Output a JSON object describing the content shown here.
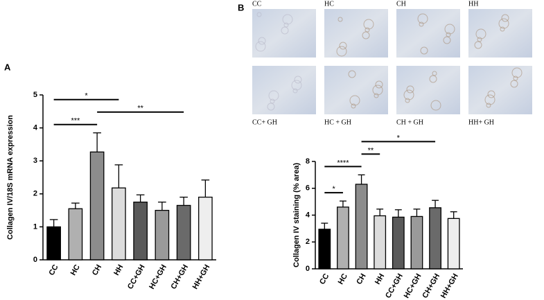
{
  "panel_labels": [
    "A",
    "B"
  ],
  "micrographs": {
    "labels": [
      "CC",
      "HC",
      "CH",
      "HH",
      "CC+ GH",
      "HC + GH",
      "CH + GH",
      "HH+ GH"
    ]
  },
  "chart_data": [
    {
      "type": "bar",
      "y_label": "Collagen IV/18S mRNA expression",
      "categories": [
        "CC",
        "HC",
        "CH",
        "HH",
        "CC+GH",
        "HC+GH",
        "CH+GH",
        "HH+GH"
      ],
      "series": [
        {
          "values": [
            1.0,
            1.55,
            3.27,
            2.18,
            1.75,
            1.5,
            1.65,
            1.9
          ],
          "errors": [
            0.22,
            0.17,
            0.58,
            0.7,
            0.22,
            0.25,
            0.25,
            0.52
          ],
          "colors": [
            "#000000",
            "#b0b0b0",
            "#8c8c8c",
            "#dcdcdc",
            "#5a5a5a",
            "#9a9a9a",
            "#6a6a6a",
            "#eeeeee"
          ]
        }
      ],
      "ylim": [
        0,
        5
      ],
      "yticks": [
        0,
        1,
        2,
        3,
        4,
        5
      ],
      "annotations": [
        {
          "text": "***",
          "from": "CC",
          "to": "CH"
        },
        {
          "text": "**",
          "from": "CH",
          "to": "CH+GH"
        },
        {
          "text": "*",
          "from": "CC",
          "to": "HH"
        }
      ]
    },
    {
      "type": "bar",
      "y_label": "Collagen IV staining (% area)",
      "categories": [
        "CC",
        "HC",
        "CH",
        "HH",
        "CC+GH",
        "HC+GH",
        "CH+GH",
        "HH+GH"
      ],
      "series": [
        {
          "values": [
            2.95,
            4.6,
            6.3,
            3.95,
            3.85,
            3.9,
            4.55,
            3.75
          ],
          "errors": [
            0.45,
            0.45,
            0.7,
            0.5,
            0.55,
            0.55,
            0.55,
            0.5
          ],
          "colors": [
            "#000000",
            "#b0b0b0",
            "#8c8c8c",
            "#dcdcdc",
            "#5a5a5a",
            "#9a9a9a",
            "#6a6a6a",
            "#eeeeee"
          ]
        }
      ],
      "ylim": [
        0,
        8
      ],
      "yticks": [
        0,
        2,
        4,
        6,
        8
      ],
      "annotations": [
        {
          "text": "*",
          "from": "CC",
          "to": "HC"
        },
        {
          "text": "****",
          "from": "CC",
          "to": "CH"
        },
        {
          "text": "**",
          "from": "CH",
          "to": "HH"
        },
        {
          "text": "*",
          "from": "CH",
          "to": "CH+GH"
        }
      ]
    }
  ]
}
